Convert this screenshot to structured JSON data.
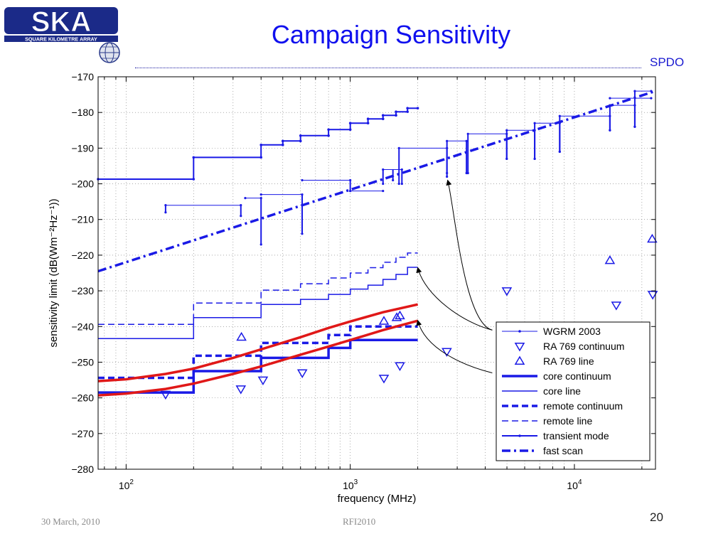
{
  "header": {
    "logo_text": "SKA",
    "logo_subtext": "SQUARE KILOMETRE ARRAY",
    "title": "Campaign Sensitivity",
    "org": "SPDO"
  },
  "footer": {
    "date": "30 March, 2010",
    "event": "RFI2010",
    "page": "20"
  },
  "colors": {
    "title": "#1010ee",
    "series_blue": "#1a1ae6",
    "model_red": "#e01818",
    "annotation": "#000000"
  },
  "chart_data": {
    "type": "line",
    "xlabel": "frequency (MHz)",
    "ylabel": "sensitivity limit (dB(Wm⁻²Hz⁻¹))",
    "xscale": "log",
    "xlim": [
      75,
      23000
    ],
    "ylim": [
      -280,
      -170
    ],
    "grid": true,
    "legend_position": "lower-right",
    "x_ticks": [
      {
        "value": 100,
        "base": "10",
        "exp": "2"
      },
      {
        "value": 1000,
        "base": "10",
        "exp": "3"
      },
      {
        "value": 10000,
        "base": "10",
        "exp": "4"
      }
    ],
    "y_ticks": [
      "−280",
      "−270",
      "−260",
      "−250",
      "−240",
      "−230",
      "−220",
      "−210",
      "−200",
      "−190",
      "−180",
      "−170"
    ],
    "y_tick_values": [
      -280,
      -270,
      -260,
      -250,
      -240,
      -230,
      -220,
      -210,
      -200,
      -190,
      -180,
      -170
    ],
    "legend": [
      {
        "label": "WGRM 2003",
        "style": "wgrm"
      },
      {
        "label": "RA 769 continuum",
        "style": "tri-down"
      },
      {
        "label": "RA 769 line",
        "style": "tri-up"
      },
      {
        "label": "core continuum",
        "style": "thick-solid"
      },
      {
        "label": "core line",
        "style": "thin-solid"
      },
      {
        "label": "remote continuum",
        "style": "thick-dash"
      },
      {
        "label": "remote line",
        "style": "thin-dash"
      },
      {
        "label": "transient mode",
        "style": "transient"
      },
      {
        "label": "fast scan",
        "style": "dashdot"
      }
    ],
    "series": [
      {
        "name": "transient mode",
        "style": "transient",
        "x": [
          75,
          200,
          200,
          400,
          400,
          500,
          500,
          600,
          600,
          800,
          800,
          1000,
          1000,
          1200,
          1200,
          1400,
          1400,
          1600,
          1600,
          1800,
          1800,
          2000
        ],
        "y": [
          -198.7,
          -198.7,
          -192.6,
          -192.6,
          -189.1,
          -189.1,
          -188.0,
          -188.0,
          -186.5,
          -186.5,
          -184.8,
          -184.8,
          -183.0,
          -183.0,
          -181.8,
          -181.8,
          -180.8,
          -180.8,
          -179.8,
          -179.8,
          -178.8,
          -178.8
        ]
      },
      {
        "name": "fast scan",
        "style": "dashdot",
        "x": [
          75,
          23000
        ],
        "y": [
          -224.5,
          -174.0
        ]
      },
      {
        "name": "core continuum",
        "style": "thick-solid",
        "x": [
          75,
          200,
          200,
          400,
          400,
          800,
          800,
          1000,
          1000,
          2000
        ],
        "y": [
          -258.5,
          -258.5,
          -252.5,
          -252.5,
          -248.8,
          -248.8,
          -246.0,
          -246.0,
          -243.8,
          -243.8
        ]
      },
      {
        "name": "remote continuum",
        "style": "thick-dash",
        "x": [
          75,
          200,
          200,
          400,
          400,
          800,
          800,
          1000,
          1000,
          2000
        ],
        "y": [
          -254.4,
          -254.4,
          -248.2,
          -248.2,
          -244.6,
          -244.6,
          -242.4,
          -242.4,
          -240.0,
          -240.0
        ]
      },
      {
        "name": "core line",
        "style": "thin-solid",
        "x": [
          75,
          200,
          200,
          400,
          400,
          600,
          600,
          800,
          800,
          1000,
          1000,
          1200,
          1200,
          1400,
          1400,
          1600,
          1600,
          1800,
          1800,
          2000
        ],
        "y": [
          -243.4,
          -243.4,
          -237.5,
          -237.5,
          -233.8,
          -233.8,
          -232.4,
          -232.4,
          -231.0,
          -231.0,
          -229.5,
          -229.5,
          -228.4,
          -228.4,
          -226.8,
          -226.8,
          -225.4,
          -225.4,
          -223.4,
          -223.4
        ]
      },
      {
        "name": "remote line",
        "style": "thin-dash",
        "x": [
          75,
          200,
          200,
          400,
          400,
          600,
          600,
          800,
          800,
          1000,
          1000,
          1200,
          1200,
          1400,
          1400,
          1600,
          1600,
          1800,
          1800,
          2000
        ],
        "y": [
          -239.4,
          -239.4,
          -233.4,
          -233.4,
          -229.8,
          -229.8,
          -228.0,
          -228.0,
          -226.4,
          -226.4,
          -225.0,
          -225.0,
          -223.5,
          -223.5,
          -222.0,
          -222.0,
          -220.6,
          -220.6,
          -219.4,
          -219.4
        ]
      },
      {
        "name": "WGRM 2003",
        "style": "wgrm",
        "segments": [
          {
            "x": [
              150,
              325
            ],
            "y": [
              -206,
              -206
            ],
            "drops": [
              [
                150,
                -208
              ],
              [
                325,
                -209
              ]
            ]
          },
          {
            "x": [
              340,
              400
            ],
            "y": [
              -204,
              -204
            ],
            "drops": [
              [
                400,
                -217
              ]
            ]
          },
          {
            "x": [
              400,
              610
            ],
            "y": [
              -203,
              -203
            ],
            "drops": [
              [
                610,
                -214
              ]
            ]
          },
          {
            "x": [
              610,
              1000
            ],
            "y": [
              -199,
              -199
            ],
            "drops": [
              [
                1000,
                -202
              ]
            ]
          },
          {
            "x": [
              1000,
              1400
            ],
            "y": [
              -202,
              -202
            ],
            "drops": []
          },
          {
            "x": [
              1400,
              1700
            ],
            "y": [
              -196,
              -196
            ],
            "drops": [
              [
                1400,
                -200
              ],
              [
                1550,
                -199
              ],
              [
                1700,
                -200
              ]
            ]
          },
          {
            "x": [
              1650,
              2700
            ],
            "y": [
              -190,
              -190
            ],
            "drops": [
              [
                1650,
                -200
              ],
              [
                2700,
                -198
              ]
            ]
          },
          {
            "x": [
              2700,
              3300
            ],
            "y": [
              -188,
              -188
            ],
            "drops": [
              [
                2700,
                -197
              ],
              [
                3300,
                -197
              ]
            ]
          },
          {
            "x": [
              3350,
              4990
            ],
            "y": [
              -186,
              -186
            ],
            "drops": [
              [
                3350,
                -197
              ],
              [
                4990,
                -193
              ]
            ]
          },
          {
            "x": [
              4990,
              6650
            ],
            "y": [
              -185,
              -185
            ],
            "drops": [
              [
                4990,
                -193
              ],
              [
                6650,
                -193
              ]
            ]
          },
          {
            "x": [
              6650,
              8600
            ],
            "y": [
              -183,
              -183
            ],
            "drops": [
              [
                6650,
                -193
              ],
              [
                8600,
                -191
              ]
            ]
          },
          {
            "x": [
              8600,
              14400
            ],
            "y": [
              -181,
              -181
            ],
            "drops": [
              [
                8600,
                -191
              ],
              [
                14400,
                -185
              ]
            ]
          },
          {
            "x": [
              14400,
              18600
            ],
            "y": [
              -178,
              -178
            ],
            "drops": [
              [
                14400,
                -185
              ],
              [
                18600,
                -184
              ]
            ]
          },
          {
            "x": [
              14400,
              22000
            ],
            "y": [
              -176,
              -176
            ],
            "drops": []
          },
          {
            "x": [
              18600,
              22000
            ],
            "y": [
              -174,
              -174
            ],
            "drops": [
              [
                18600,
                -184
              ]
            ]
          }
        ]
      },
      {
        "name": "RA 769 continuum",
        "style": "tri-down",
        "x": [
          150,
          325,
          408,
          611,
          1413,
          1665,
          2695,
          4995,
          15375,
          22355
        ],
        "y": [
          -259,
          -257.5,
          -255,
          -253,
          -254.5,
          -251,
          -247,
          -230,
          -234,
          -231
        ]
      },
      {
        "name": "RA 769 line",
        "style": "tri-up",
        "x": [
          327,
          1413,
          1612,
          1665,
          14400,
          22235
        ],
        "y": [
          -243,
          -238.5,
          -237.5,
          -237,
          -221.5,
          -215.5
        ]
      },
      {
        "name": "model upper",
        "style": "red",
        "x": [
          75,
          100,
          150,
          200,
          300,
          400,
          600,
          800,
          1000,
          1400,
          2000
        ],
        "y": [
          -255.3,
          -254.8,
          -253.3,
          -251.8,
          -248.8,
          -246.4,
          -243.0,
          -240.4,
          -238.6,
          -236.0,
          -233.8
        ]
      },
      {
        "name": "model lower",
        "style": "red",
        "x": [
          75,
          100,
          150,
          200,
          300,
          400,
          600,
          800,
          1000,
          1400,
          2000
        ],
        "y": [
          -259.3,
          -258.8,
          -257.5,
          -256.0,
          -253.3,
          -251.2,
          -247.9,
          -245.6,
          -243.8,
          -241.0,
          -238.4
        ]
      }
    ],
    "annotations": [
      {
        "from": [
          4300,
          -241
        ],
        "to": [
          2720,
          -199
        ]
      },
      {
        "from": [
          4300,
          -241
        ],
        "to": [
          2000,
          -223.5
        ]
      },
      {
        "from": [
          4300,
          -253
        ],
        "to": [
          2000,
          -238.3
        ]
      }
    ]
  }
}
